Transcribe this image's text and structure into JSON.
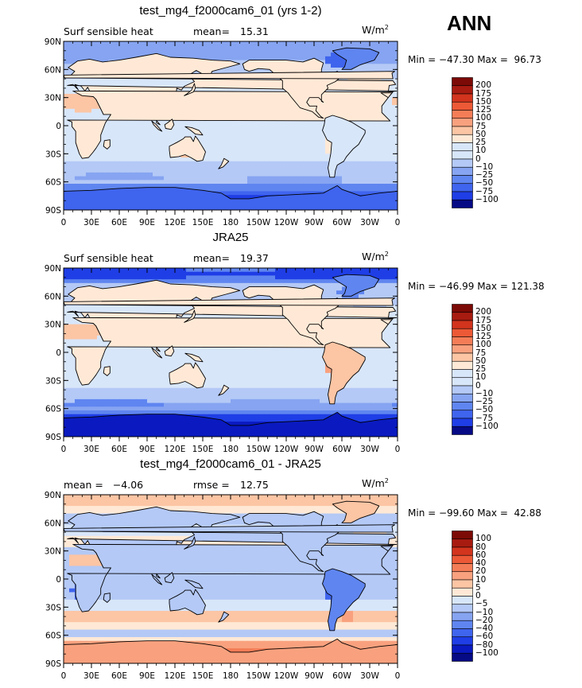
{
  "season_label": "ANN",
  "palette": {
    "-7": "#060a85",
    "-6": "#0a1ac0",
    "-5": "#1f3ee6",
    "-4": "#3f64ee",
    "-3": "#5f85f0",
    "-2": "#86a4f1",
    "-1": "#b4c9f6",
    "0": "#d8e6fa",
    "1": "#ffe9d6",
    "2": "#fcc5a4",
    "3": "#f9a17e",
    "4": "#f47d57",
    "5": "#ec5936",
    "6": "#d2341d",
    "7": "#a81b10",
    "8": "#7c0a06"
  },
  "axes": {
    "y_ticks": [
      "90N",
      "60N",
      "30N",
      "0",
      "30S",
      "60S",
      "90S"
    ],
    "x_ticks": [
      "0",
      "30E",
      "60E",
      "90E",
      "120E",
      "150E",
      "180",
      "150W",
      "120W",
      "90W",
      "60W",
      "30W",
      "0"
    ]
  },
  "chart_data": [
    {
      "type": "heatmap",
      "title": "test_mg4_f2000cam6_01 (yrs 1-2)",
      "subtitle_left": "Surf sensible heat",
      "stat_label": "mean=",
      "stat_value": "15.31",
      "units": "W/m",
      "units_exp": "2",
      "minmax": "Min = −47.30 Max =  96.73",
      "min": -47.3,
      "max": 96.73,
      "mean": 15.31,
      "xlim": [
        0,
        360
      ],
      "ylim": [
        -90,
        90
      ],
      "colorbar_levels": [
        "200",
        "175",
        "150",
        "125",
        "100",
        "75",
        "50",
        "25",
        "10",
        "0",
        "−10",
        "−25",
        "−50",
        "−75",
        "−100"
      ],
      "colorbar_colors": [
        8,
        7,
        6,
        5,
        4,
        3,
        2,
        1,
        0,
        0,
        -1,
        -2,
        -3,
        -4,
        -5,
        -7
      ]
    },
    {
      "type": "heatmap",
      "title": "JRA25",
      "subtitle_left": "Surf sensible heat",
      "stat_label": "mean=",
      "stat_value": "19.37",
      "units": "W/m",
      "units_exp": "2",
      "minmax": "Min = −46.99 Max = 121.38",
      "min": -46.99,
      "max": 121.38,
      "mean": 19.37,
      "xlim": [
        0,
        360
      ],
      "ylim": [
        -90,
        90
      ],
      "colorbar_levels": [
        "200",
        "175",
        "150",
        "125",
        "100",
        "75",
        "50",
        "25",
        "10",
        "0",
        "−10",
        "−25",
        "−50",
        "−75",
        "−100"
      ],
      "colorbar_colors": [
        8,
        7,
        6,
        5,
        4,
        3,
        2,
        1,
        0,
        0,
        -1,
        -2,
        -3,
        -4,
        -5,
        -7
      ]
    },
    {
      "type": "heatmap",
      "title": "test_mg4_f2000cam6_01 - JRA25",
      "subtitle_left": "mean =   −4.06",
      "stat_label": "rmse =",
      "stat_value": "12.75",
      "units": "W/m",
      "units_exp": "2",
      "minmax": "Min = −99.60 Max =  42.88",
      "min": -99.6,
      "max": 42.88,
      "mean": -4.06,
      "rmse": 12.75,
      "xlim": [
        0,
        360
      ],
      "ylim": [
        -90,
        90
      ],
      "colorbar_levels": [
        "100",
        "80",
        "60",
        "40",
        "20",
        "10",
        "5",
        "0",
        "−5",
        "−10",
        "−20",
        "−40",
        "−60",
        "−80",
        "−100"
      ],
      "colorbar_colors": [
        8,
        7,
        6,
        5,
        4,
        3,
        2,
        1,
        0,
        -1,
        -2,
        -3,
        -4,
        -5,
        -6,
        -7
      ]
    }
  ]
}
